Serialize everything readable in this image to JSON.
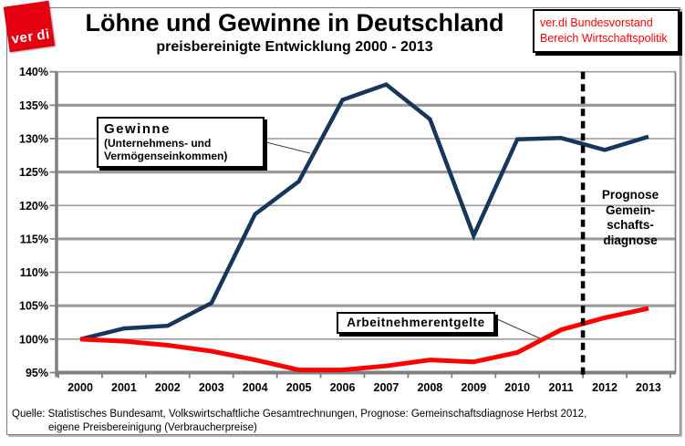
{
  "header": {
    "logo_pre": "ver",
    "logo_dot": ".",
    "logo_post": "di",
    "title": "Löhne und Gewinne in Deutschland",
    "subtitle": "preisbereinigte Entwicklung 2000 - 2013",
    "publisher": "ver.di Bundesvorstand\nBereich Wirtschaftspolitik"
  },
  "chart_data": {
    "type": "line",
    "categories": [
      "2000",
      "2001",
      "2002",
      "2003",
      "2004",
      "2005",
      "2006",
      "2007",
      "2008",
      "2009",
      "2010",
      "2011",
      "2012",
      "2013"
    ],
    "series": [
      {
        "name": "Gewinne",
        "label_title": "Gewinne",
        "label_sub": "(Unternehmens- und\nVermögenseinkommen)",
        "color": "#17365D",
        "values": [
          100,
          101.6,
          102.0,
          105.4,
          118.7,
          123.6,
          135.8,
          138.1,
          132.9,
          115.5,
          129.9,
          130.1,
          128.3,
          130.3
        ]
      },
      {
        "name": "Arbeitnehmerentgelte",
        "label": "Arbeitnehmerentgelte",
        "color": "#FF0000",
        "values": [
          100,
          99.7,
          99.1,
          98.2,
          96.9,
          95.4,
          95.4,
          96.0,
          96.9,
          96.6,
          98.0,
          101.4,
          103.2,
          104.6
        ]
      }
    ],
    "ylim": [
      95,
      140
    ],
    "ytick_step": 5,
    "ytick_suffix": "%",
    "grid": true,
    "legend_position": "labeled-boxes-on-plot",
    "prognose": {
      "x_year": 2011.5,
      "label": "Prognose\nGemein-\nschafts-\ndiagnose"
    },
    "colors": {
      "grid": "#9a9a9a",
      "axis": "#808080",
      "dashed_line": "#000000"
    }
  },
  "source": {
    "line1": "Quelle: Statistisches Bundesamt, Volkswirtschaftliche Gesamtrechnungen, Prognose: Gemeinschaftsdiagnose Herbst 2012,",
    "line2": "eigene Preisbereinigung (Verbraucherpreise)"
  }
}
